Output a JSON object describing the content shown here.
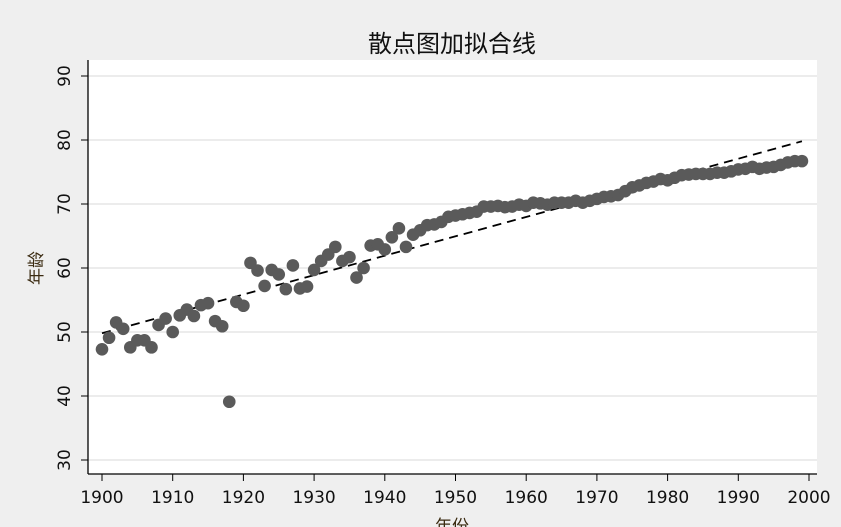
{
  "chart_data": {
    "type": "scatter",
    "title": "散点图加拟合线",
    "xlabel": "年份",
    "ylabel": "年龄",
    "xlim": [
      1898,
      2002
    ],
    "ylim": [
      28,
      92.5
    ],
    "xticks": [
      1900,
      1910,
      1920,
      1930,
      1940,
      1950,
      1960,
      1970,
      1980,
      1990,
      2000
    ],
    "yticks": [
      30,
      40,
      50,
      60,
      70,
      80,
      90
    ],
    "grid": "horizontal",
    "colors": {
      "points": "#5a5a5a",
      "fit": "#000000",
      "background": "#efefef",
      "plot": "#ffffff",
      "grid": "#e6e6e6"
    },
    "x_start": 1900,
    "y": [
      47.3,
      49.1,
      51.5,
      50.5,
      47.6,
      48.7,
      48.7,
      47.6,
      51.1,
      52.1,
      50.0,
      52.6,
      53.5,
      52.5,
      54.2,
      54.5,
      51.7,
      50.9,
      39.1,
      54.7,
      54.1,
      60.8,
      59.6,
      57.2,
      59.7,
      59.0,
      56.7,
      60.4,
      56.8,
      57.1,
      59.7,
      61.1,
      62.1,
      63.3,
      61.1,
      61.7,
      58.5,
      60.0,
      63.5,
      63.7,
      62.9,
      64.8,
      66.2,
      63.3,
      65.2,
      65.9,
      66.7,
      66.8,
      67.2,
      68.0,
      68.2,
      68.4,
      68.6,
      68.8,
      69.6,
      69.6,
      69.7,
      69.5,
      69.6,
      69.9,
      69.7,
      70.2,
      70.1,
      69.9,
      70.2,
      70.2,
      70.2,
      70.5,
      70.2,
      70.5,
      70.8,
      71.1,
      71.2,
      71.4,
      72.0,
      72.6,
      72.9,
      73.3,
      73.5,
      73.9,
      73.7,
      74.1,
      74.5,
      74.6,
      74.7,
      74.7,
      74.7,
      74.9,
      74.9,
      75.1,
      75.4,
      75.5,
      75.8,
      75.5,
      75.7,
      75.8,
      76.1,
      76.5,
      76.7,
      76.7
    ],
    "fit_line": {
      "style": "dashed",
      "x": [
        1900,
        1999
      ],
      "y": [
        49.8,
        79.8
      ]
    }
  }
}
